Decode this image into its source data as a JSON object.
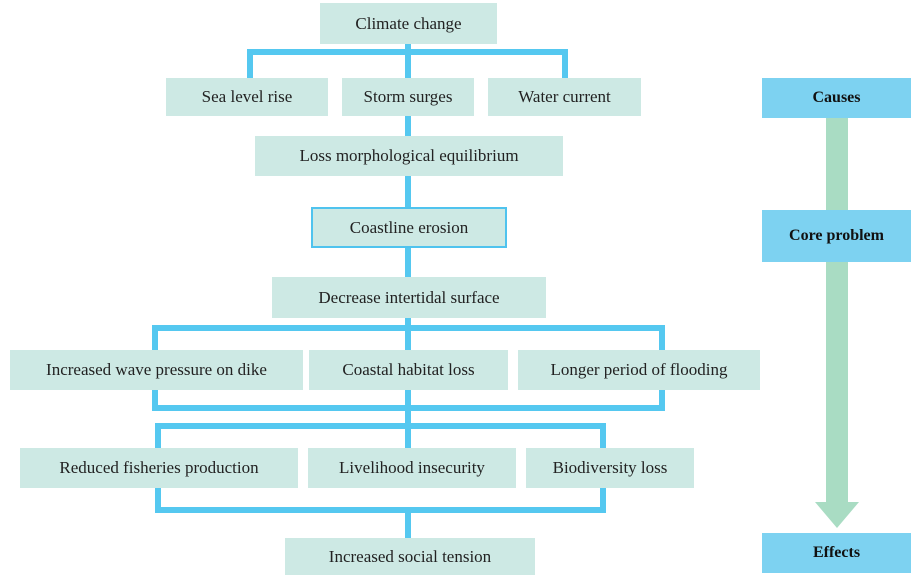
{
  "nodes": [
    {
      "label": "Climate change"
    },
    {
      "label": "Sea level rise"
    },
    {
      "label": "Storm surges"
    },
    {
      "label": "Water current"
    },
    {
      "label": "Loss morphological equilibrium"
    },
    {
      "label": "Coastline erosion"
    },
    {
      "label": "Decrease intertidal surface"
    },
    {
      "label": "Increased wave pressure on dike"
    },
    {
      "label": "Coastal habitat loss"
    },
    {
      "label": "Longer period of flooding"
    },
    {
      "label": "Reduced fisheries production"
    },
    {
      "label": "Livelihood insecurity"
    },
    {
      "label": "Biodiversity loss"
    },
    {
      "label": "Increased social tension"
    }
  ],
  "legend": [
    {
      "label": "Causes"
    },
    {
      "label": "Core problem"
    },
    {
      "label": "Effects"
    }
  ]
}
